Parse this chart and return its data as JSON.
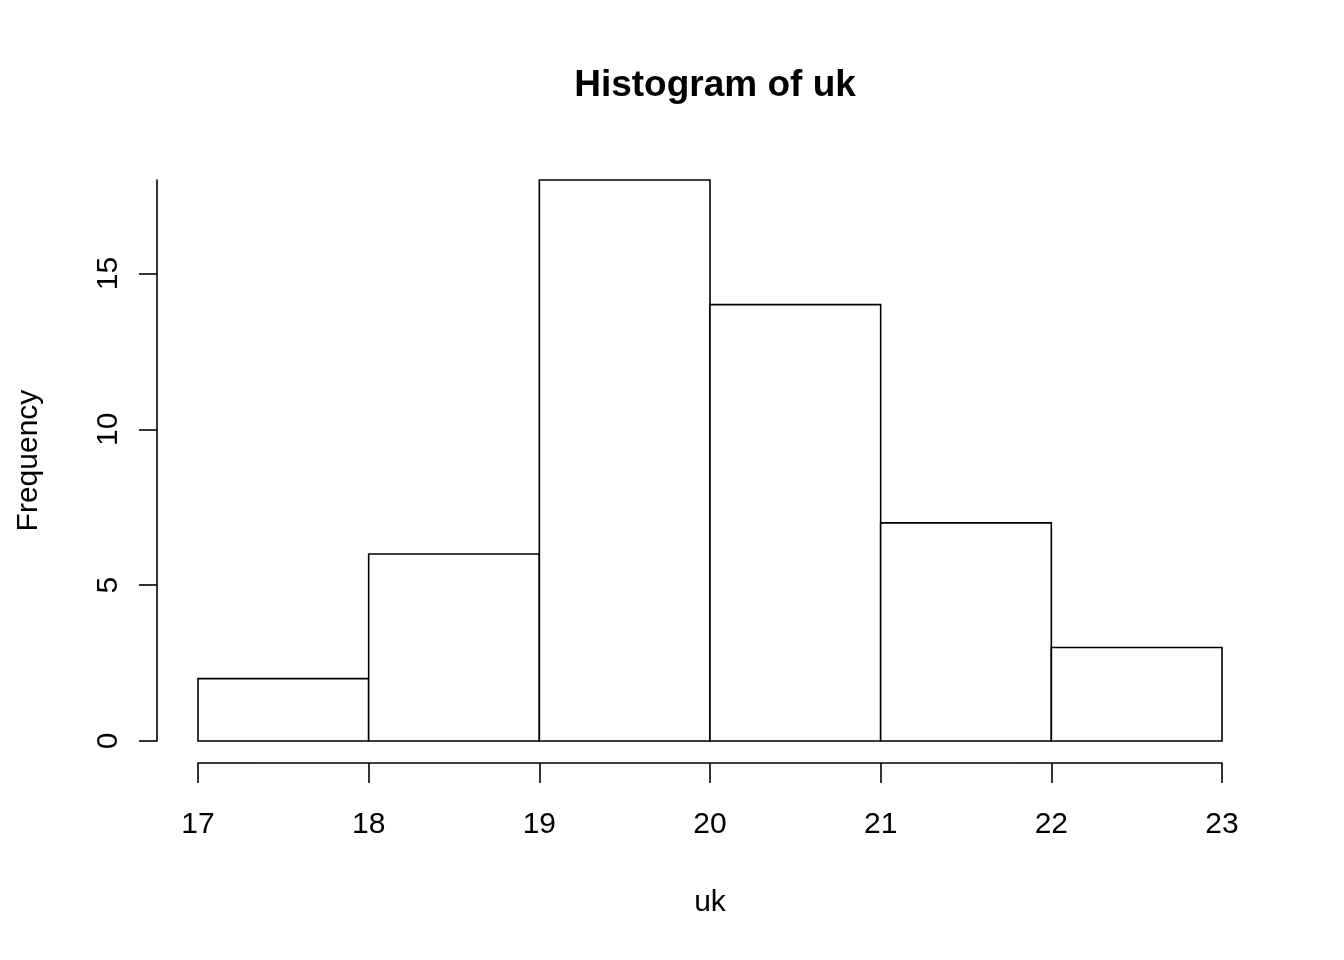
{
  "chart_data": {
    "type": "histogram",
    "title": "Histogram of uk",
    "xlabel": "uk",
    "ylabel": "Frequency",
    "bins": [
      17,
      18,
      19,
      20,
      21,
      22,
      23
    ],
    "values": [
      2,
      6,
      18,
      14,
      7,
      3
    ],
    "color": "#ffffff",
    "xlim": [
      17,
      23
    ],
    "xticks": [
      17,
      18,
      19,
      20,
      21,
      22,
      23
    ],
    "ylim": [
      0,
      18
    ],
    "yticks": [
      0,
      5,
      10,
      15
    ]
  }
}
